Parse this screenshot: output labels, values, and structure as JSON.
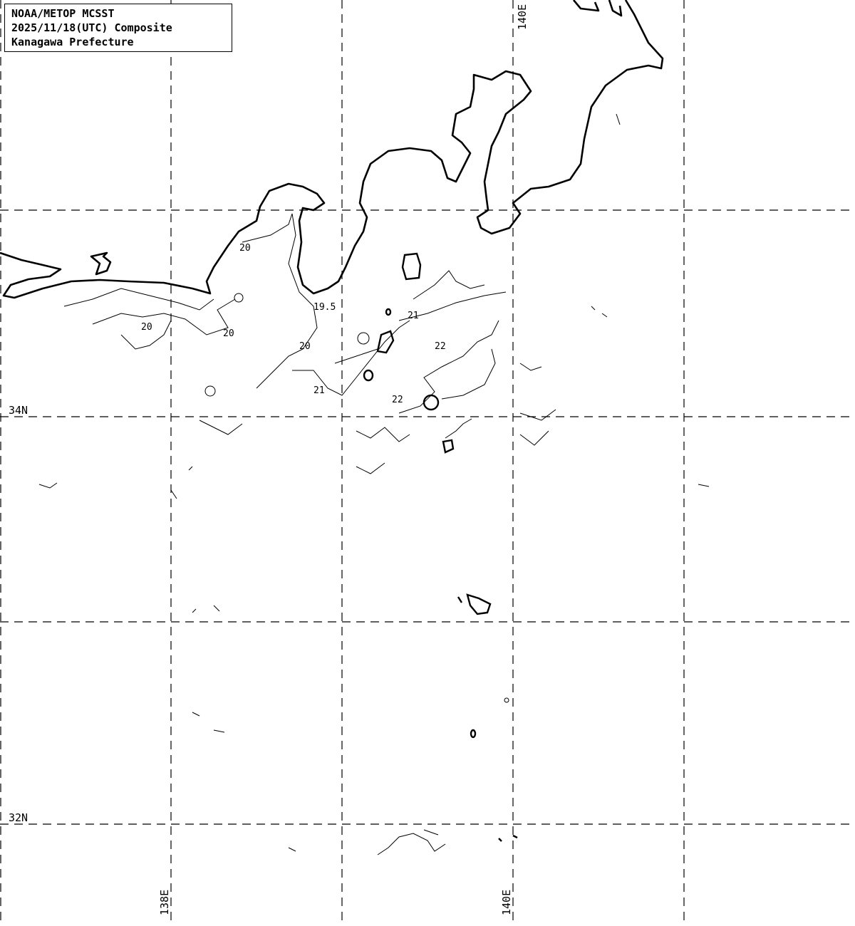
{
  "title": {
    "line1": "NOAA/METOP MCSST",
    "line2": "2025/11/18(UTC) Composite",
    "line3": "Kanagawa Prefecture"
  },
  "grid_labels": {
    "lon_top_140": "140E",
    "lon_bottom_138": "138E",
    "lon_bottom_140": "140E",
    "lat_34": "34N",
    "lat_32": "32N"
  },
  "contour_labels": [
    "20",
    "20",
    "20",
    "20",
    "19.5",
    "21",
    "21",
    "22",
    "22"
  ],
  "colors": {
    "background": "#ffffff",
    "lines": "#000000"
  }
}
